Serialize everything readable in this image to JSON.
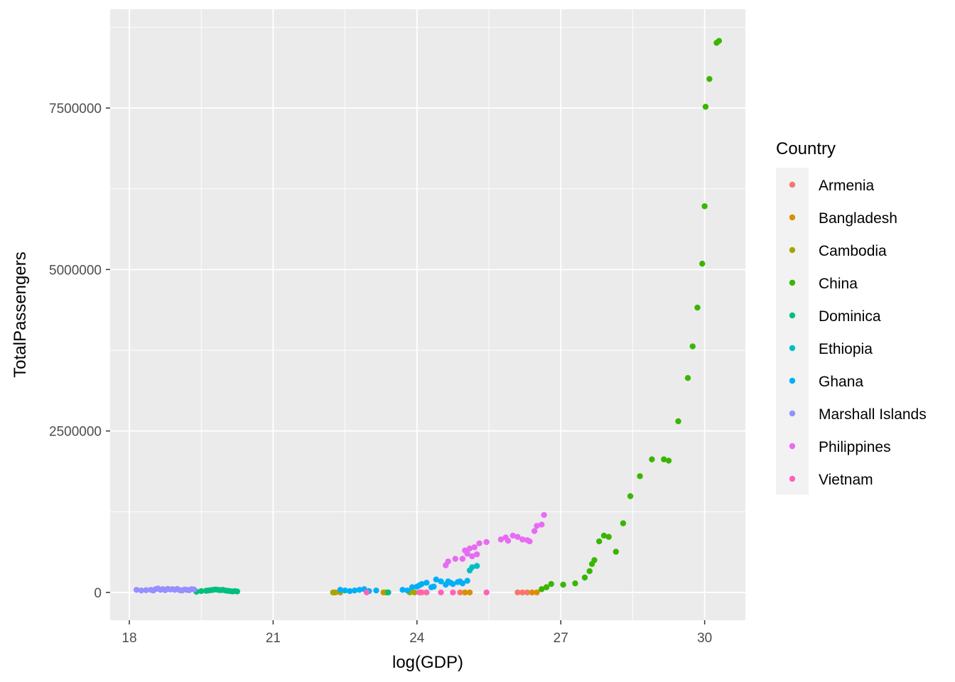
{
  "chart_data": {
    "type": "scatter",
    "xlabel": "log(GDP)",
    "ylabel": "TotalPassengers",
    "xlim": [
      17.6,
      30.85
    ],
    "ylim": [
      -430000,
      9030000
    ],
    "x_ticks": [
      18,
      21,
      24,
      27,
      30
    ],
    "x_tick_labels": [
      "18",
      "21",
      "24",
      "27",
      "30"
    ],
    "y_ticks": [
      0,
      2500000,
      5000000,
      7500000
    ],
    "y_tick_labels": [
      "0",
      "2500000",
      "5000000",
      "7500000"
    ],
    "grid": true,
    "legend": {
      "title": "Country",
      "position": "right"
    },
    "series": [
      {
        "name": "Armenia",
        "color": "#F8766D",
        "x": [
          23.4,
          24.1,
          24.9,
          26.1,
          26.2,
          26.3
        ],
        "y": [
          0,
          0,
          0,
          0,
          0,
          0
        ]
      },
      {
        "name": "Bangladesh",
        "color": "#D89000",
        "x": [
          22.3,
          23.3,
          25.0,
          25.1,
          26.4,
          26.5
        ],
        "y": [
          0,
          0,
          0,
          0,
          0,
          0
        ]
      },
      {
        "name": "Cambodia",
        "color": "#A3A500",
        "x": [
          22.25,
          22.4,
          23.35,
          23.85,
          23.95
        ],
        "y": [
          0,
          0,
          0,
          0,
          0
        ]
      },
      {
        "name": "China",
        "color": "#39B600",
        "x": [
          26.6,
          26.7,
          26.8,
          27.05,
          27.3,
          27.5,
          27.6,
          27.65,
          27.7,
          27.8,
          27.9,
          28.0,
          28.15,
          28.3,
          28.45,
          28.65,
          28.9,
          29.15,
          29.25,
          29.45,
          29.65,
          29.75,
          29.85,
          29.95,
          30.0,
          30.02,
          30.1,
          30.25,
          30.3
        ],
        "y": [
          50000,
          80000,
          130000,
          120000,
          140000,
          230000,
          330000,
          440000,
          500000,
          790000,
          880000,
          860000,
          630000,
          1070000,
          1490000,
          1800000,
          2060000,
          2060000,
          2040000,
          2650000,
          3320000,
          3810000,
          4410000,
          5090000,
          5980000,
          7520000,
          7950000,
          8510000,
          8540000
        ]
      },
      {
        "name": "Dominica",
        "color": "#00BF7D",
        "x": [
          19.4,
          19.5,
          19.6,
          19.65,
          19.7,
          19.75,
          19.8,
          19.85,
          19.9,
          19.95,
          20.0,
          20.05,
          20.1,
          20.15,
          20.2,
          20.25,
          23.4
        ],
        "y": [
          10000,
          20000,
          25000,
          30000,
          35000,
          40000,
          45000,
          40000,
          35000,
          40000,
          30000,
          25000,
          20000,
          15000,
          20000,
          15000,
          0
        ]
      },
      {
        "name": "Ethiopia",
        "color": "#00BFC4",
        "x": [
          25.1,
          25.15,
          25.25
        ],
        "y": [
          340000,
          390000,
          410000
        ]
      },
      {
        "name": "Ghana",
        "color": "#00B0F6",
        "x": [
          22.4,
          22.5,
          22.6,
          22.7,
          22.8,
          22.9,
          23.0,
          23.15,
          23.7,
          23.8,
          23.9,
          24.0,
          24.05,
          24.1,
          24.2,
          24.3,
          24.35,
          24.4,
          24.5,
          24.6,
          24.65,
          24.7,
          24.75,
          24.85,
          24.9,
          24.95,
          25.05
        ],
        "y": [
          40000,
          30000,
          20000,
          30000,
          40000,
          50000,
          20000,
          30000,
          40000,
          30000,
          80000,
          90000,
          110000,
          130000,
          150000,
          80000,
          90000,
          200000,
          170000,
          120000,
          170000,
          150000,
          130000,
          160000,
          170000,
          140000,
          180000
        ]
      },
      {
        "name": "Marshall Islands",
        "color": "#9590FF",
        "x": [
          18.15,
          18.25,
          18.35,
          18.45,
          18.5,
          18.55,
          18.6,
          18.65,
          18.7,
          18.75,
          18.8,
          18.85,
          18.9,
          18.95,
          19.0,
          19.05,
          19.1,
          19.15,
          19.2,
          19.25,
          19.3,
          19.35
        ],
        "y": [
          40000,
          30000,
          35000,
          40000,
          30000,
          50000,
          60000,
          40000,
          50000,
          35000,
          55000,
          45000,
          50000,
          40000,
          55000,
          35000,
          30000,
          45000,
          40000,
          35000,
          50000,
          45000
        ]
      },
      {
        "name": "Philippines",
        "color": "#E76BF3",
        "x": [
          24.6,
          24.65,
          24.8,
          24.95,
          25.0,
          25.05,
          25.1,
          25.15,
          25.2,
          25.25,
          25.3,
          25.45,
          25.75,
          25.85,
          25.9,
          26.0,
          26.1,
          26.2,
          26.3,
          26.35,
          26.45,
          26.5,
          26.6,
          26.65
        ],
        "y": [
          420000,
          480000,
          520000,
          520000,
          650000,
          600000,
          680000,
          560000,
          700000,
          590000,
          760000,
          780000,
          820000,
          850000,
          800000,
          880000,
          860000,
          820000,
          810000,
          790000,
          950000,
          1030000,
          1050000,
          1200000
        ]
      },
      {
        "name": "Vietnam",
        "color": "#FF62BC",
        "x": [
          22.95,
          24.05,
          24.2,
          24.5,
          24.75,
          25.45
        ],
        "y": [
          0,
          0,
          0,
          0,
          0,
          0
        ]
      }
    ]
  }
}
